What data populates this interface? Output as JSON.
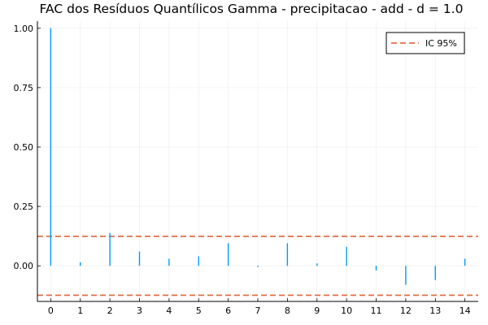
{
  "chart_data": {
    "type": "bar",
    "title": "FAC dos Resíduos Quantílicos Gamma - precipitacao - add - d = 1.0",
    "xlabel": "",
    "ylabel": "",
    "x": [
      0,
      1,
      2,
      3,
      4,
      5,
      6,
      7,
      8,
      9,
      10,
      11,
      12,
      13,
      14
    ],
    "x_tick_labels": [
      "0",
      "1",
      "2",
      "3",
      "4",
      "5",
      "6",
      "7",
      "8",
      "9",
      "10",
      "11",
      "12",
      "13",
      "14"
    ],
    "xlim": [
      -0.45,
      14.45
    ],
    "ylim": [
      -0.15,
      1.03
    ],
    "y_ticks": [
      0.0,
      0.25,
      0.5,
      0.75,
      1.0
    ],
    "y_tick_labels": [
      "0.00",
      "0.25",
      "0.50",
      "0.75",
      "1.00"
    ],
    "grid": true,
    "legend_position": "top-right",
    "series": [
      {
        "values": [
          1.0,
          0.015,
          0.138,
          0.06,
          0.03,
          0.04,
          0.095,
          -0.005,
          0.095,
          0.01,
          0.08,
          -0.02,
          -0.08,
          -0.06,
          0.03
        ],
        "color": "#009AFA"
      }
    ],
    "confidence_band": {
      "name": "IC 95%",
      "upper": 0.124,
      "lower": -0.124,
      "color": "#E26F46"
    }
  }
}
